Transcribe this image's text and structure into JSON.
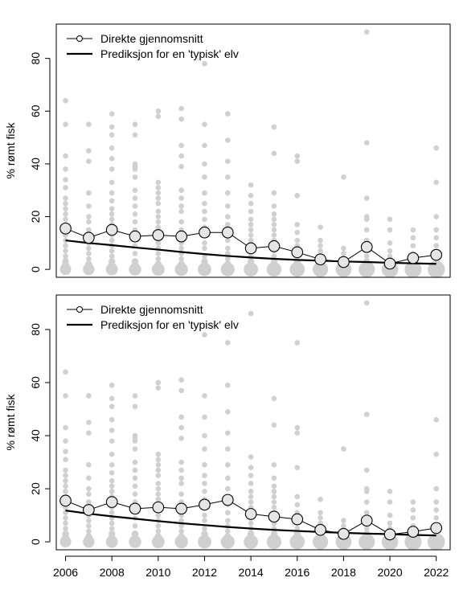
{
  "chart_data": [
    {
      "type": "scatter",
      "ylabel": "% rømt fisk",
      "xlim": [
        2005.6,
        2022.6
      ],
      "ylim": [
        -3,
        93
      ],
      "yticks": [
        0,
        20,
        40,
        60,
        80
      ],
      "xticks": [
        2006,
        2008,
        2010,
        2012,
        2014,
        2016,
        2018,
        2020,
        2022
      ],
      "show_x_axis": false,
      "grid": false,
      "legend_position": "top-left",
      "legend": [
        "Direkte gjennomsnitt",
        "Prediksjon for en 'typisk' elv"
      ],
      "point_color": "#d0d0d0",
      "years": [
        2006,
        2007,
        2008,
        2009,
        2010,
        2011,
        2012,
        2013,
        2014,
        2015,
        2016,
        2017,
        2018,
        2019,
        2020,
        2021,
        2022
      ],
      "mean": [
        15.5,
        12,
        15,
        12.5,
        13,
        12.5,
        14,
        14,
        8,
        8.8,
        6.5,
        3.8,
        2.8,
        8.5,
        2.2,
        4.3,
        5.5
      ],
      "prediction": [
        11,
        10,
        9.2,
        8.3,
        7.5,
        6.6,
        5.8,
        5.1,
        4.5,
        4,
        3.6,
        3.3,
        3,
        2.8,
        2.5,
        2.3,
        2.1
      ],
      "observations": [
        {
          "year": 2006,
          "values": [
            64,
            55,
            43,
            38,
            34,
            31,
            27,
            25,
            23,
            21,
            19,
            17,
            15,
            13,
            11,
            9,
            7,
            5,
            3,
            1,
            0
          ]
        },
        {
          "year": 2007,
          "values": [
            55,
            45,
            41,
            29,
            24,
            20,
            18,
            15,
            12,
            10,
            8,
            6,
            4,
            2,
            1,
            0
          ]
        },
        {
          "year": 2008,
          "values": [
            59,
            54,
            51,
            46,
            42,
            38,
            33,
            29,
            26,
            23,
            21,
            19,
            17,
            15,
            13,
            11,
            9,
            7,
            5,
            3,
            1,
            0
          ]
        },
        {
          "year": 2009,
          "values": [
            55,
            51,
            40,
            39,
            38,
            35,
            30,
            27,
            24,
            21,
            18,
            15,
            12,
            9,
            6,
            3,
            1,
            0
          ]
        },
        {
          "year": 2010,
          "values": [
            60,
            58,
            33,
            31,
            29,
            27,
            25,
            22,
            20,
            18,
            16,
            14,
            12,
            10,
            8,
            6,
            4,
            2,
            1,
            0
          ]
        },
        {
          "year": 2011,
          "values": [
            61,
            57,
            47,
            43,
            39,
            30,
            27,
            24,
            22,
            18,
            15,
            12,
            10,
            8,
            6,
            4,
            2,
            1,
            0
          ]
        },
        {
          "year": 2012,
          "values": [
            78,
            55,
            47,
            40,
            35,
            29,
            25,
            22,
            19,
            16,
            13,
            10,
            8,
            5,
            3,
            1,
            0
          ]
        },
        {
          "year": 2013,
          "values": [
            59,
            49,
            41,
            35,
            29,
            24,
            20,
            17,
            14,
            11,
            8,
            6,
            4,
            2,
            1,
            0
          ]
        },
        {
          "year": 2014,
          "values": [
            32,
            28,
            25,
            22,
            19,
            17,
            15,
            13,
            11,
            9,
            7,
            5,
            3,
            1,
            0
          ]
        },
        {
          "year": 2015,
          "values": [
            54,
            44,
            29,
            24,
            21,
            19,
            17,
            15,
            13,
            11,
            9,
            7,
            5,
            3,
            1,
            0
          ]
        },
        {
          "year": 2016,
          "values": [
            43,
            41,
            28,
            17,
            14,
            11,
            9,
            7,
            5,
            3,
            1,
            0
          ]
        },
        {
          "year": 2017,
          "values": [
            16,
            11,
            9,
            7,
            5,
            3,
            1,
            0
          ]
        },
        {
          "year": 2018,
          "values": [
            35,
            8,
            6,
            4,
            2,
            1,
            0
          ]
        },
        {
          "year": 2019,
          "values": [
            90,
            48,
            27,
            20,
            19,
            15,
            11,
            8,
            5,
            3,
            1,
            0
          ]
        },
        {
          "year": 2020,
          "values": [
            19,
            15,
            10,
            7,
            5,
            3,
            1,
            0
          ]
        },
        {
          "year": 2021,
          "values": [
            15,
            12,
            9,
            6,
            4,
            2,
            1,
            0
          ]
        },
        {
          "year": 2022,
          "values": [
            46,
            33,
            20,
            15,
            12,
            9,
            6,
            4,
            2,
            1,
            0
          ]
        }
      ]
    },
    {
      "type": "scatter",
      "ylabel": "% rømt fisk",
      "xlim": [
        2005.6,
        2022.6
      ],
      "ylim": [
        -3,
        93
      ],
      "yticks": [
        0,
        20,
        40,
        60,
        80
      ],
      "xticks": [
        2006,
        2008,
        2010,
        2012,
        2014,
        2016,
        2018,
        2020,
        2022
      ],
      "show_x_axis": true,
      "grid": false,
      "legend_position": "top-left",
      "legend": [
        "Direkte gjennomsnitt",
        "Prediksjon for en 'typisk' elv"
      ],
      "point_color": "#d0d0d0",
      "years": [
        2006,
        2007,
        2008,
        2009,
        2010,
        2011,
        2012,
        2013,
        2014,
        2015,
        2016,
        2017,
        2018,
        2019,
        2020,
        2021,
        2022
      ],
      "mean": [
        15.5,
        12,
        15,
        12.5,
        13,
        12.5,
        14,
        15.8,
        10.5,
        9.5,
        8.5,
        4.5,
        3,
        8,
        2.8,
        3.8,
        5.2
      ],
      "prediction": [
        11.8,
        10.6,
        9.6,
        8.7,
        7.8,
        7,
        6.3,
        5.6,
        5,
        4.5,
        4.1,
        3.7,
        3.4,
        3.1,
        2.9,
        2.6,
        2.4
      ],
      "observations": [
        {
          "year": 2006,
          "values": [
            64,
            55,
            43,
            38,
            34,
            31,
            27,
            25,
            23,
            21,
            19,
            17,
            15,
            13,
            11,
            9,
            7,
            5,
            3,
            1,
            0
          ]
        },
        {
          "year": 2007,
          "values": [
            55,
            45,
            41,
            29,
            24,
            20,
            18,
            15,
            12,
            10,
            8,
            6,
            4,
            2,
            1,
            0
          ]
        },
        {
          "year": 2008,
          "values": [
            59,
            54,
            51,
            46,
            42,
            38,
            33,
            29,
            26,
            23,
            21,
            19,
            17,
            15,
            13,
            11,
            9,
            7,
            5,
            3,
            1,
            0
          ]
        },
        {
          "year": 2009,
          "values": [
            55,
            51,
            40,
            39,
            38,
            35,
            30,
            27,
            24,
            21,
            18,
            15,
            12,
            9,
            6,
            3,
            1,
            0
          ]
        },
        {
          "year": 2010,
          "values": [
            60,
            58,
            33,
            31,
            29,
            27,
            25,
            22,
            20,
            18,
            16,
            14,
            12,
            10,
            8,
            6,
            4,
            2,
            1,
            0
          ]
        },
        {
          "year": 2011,
          "values": [
            61,
            57,
            47,
            43,
            39,
            30,
            27,
            24,
            22,
            18,
            15,
            12,
            10,
            8,
            6,
            4,
            2,
            1,
            0
          ]
        },
        {
          "year": 2012,
          "values": [
            78,
            55,
            47,
            40,
            35,
            29,
            25,
            22,
            19,
            16,
            13,
            10,
            8,
            5,
            3,
            1,
            0
          ]
        },
        {
          "year": 2013,
          "values": [
            75,
            59,
            49,
            41,
            35,
            29,
            24,
            20,
            17,
            14,
            11,
            8,
            6,
            4,
            2,
            1,
            0
          ]
        },
        {
          "year": 2014,
          "values": [
            86,
            32,
            28,
            25,
            22,
            19,
            17,
            15,
            13,
            11,
            9,
            7,
            5,
            3,
            1,
            0
          ]
        },
        {
          "year": 2015,
          "values": [
            54,
            44,
            29,
            24,
            21,
            19,
            17,
            15,
            13,
            11,
            9,
            7,
            5,
            3,
            1,
            0
          ]
        },
        {
          "year": 2016,
          "values": [
            75,
            43,
            41,
            28,
            17,
            14,
            11,
            9,
            7,
            5,
            3,
            1,
            0
          ]
        },
        {
          "year": 2017,
          "values": [
            16,
            11,
            9,
            7,
            5,
            3,
            1,
            0
          ]
        },
        {
          "year": 2018,
          "values": [
            35,
            8,
            6,
            4,
            2,
            1,
            0
          ]
        },
        {
          "year": 2019,
          "values": [
            90,
            48,
            27,
            20,
            19,
            15,
            11,
            8,
            5,
            3,
            1,
            0
          ]
        },
        {
          "year": 2020,
          "values": [
            19,
            15,
            10,
            7,
            5,
            3,
            1,
            0
          ]
        },
        {
          "year": 2021,
          "values": [
            15,
            12,
            9,
            6,
            4,
            2,
            1,
            0
          ]
        },
        {
          "year": 2022,
          "values": [
            46,
            33,
            20,
            15,
            12,
            9,
            6,
            4,
            2,
            1,
            0
          ]
        }
      ]
    }
  ]
}
